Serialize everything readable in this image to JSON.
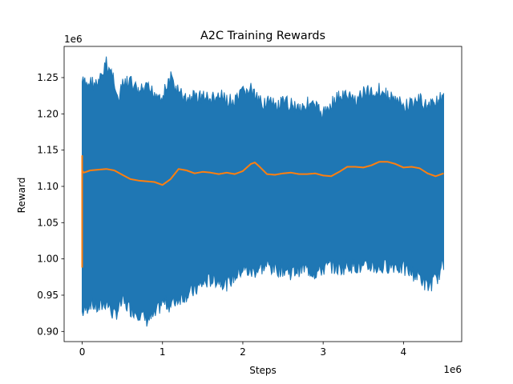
{
  "chart_data": {
    "type": "line",
    "title": "A2C Training Rewards",
    "xlabel": "Steps",
    "ylabel": "Reward",
    "x_offset_label": "1e6",
    "y_offset_label": "1e6",
    "xlim": [
      -0.225,
      4.725
    ],
    "ylim": [
      0.886,
      1.293
    ],
    "x_ticks": [
      0,
      1,
      2,
      3,
      4
    ],
    "y_ticks": [
      0.9,
      0.95,
      1.0,
      1.05,
      1.1,
      1.15,
      1.2,
      1.25
    ],
    "x_tick_labels": [
      "0",
      "1",
      "2",
      "3",
      "4"
    ],
    "y_tick_labels": [
      "0.90",
      "0.95",
      "1.00",
      "1.05",
      "1.10",
      "1.15",
      "1.20",
      "1.25"
    ],
    "grid": false,
    "series": [
      {
        "color": "#1f77b4",
        "style": "noisy-band",
        "x": [
          0.0,
          0.05,
          0.1,
          0.2,
          0.3,
          0.4,
          0.45,
          0.5,
          0.6,
          0.7,
          0.8,
          0.9,
          1.0,
          1.1,
          1.2,
          1.3,
          1.4,
          1.5,
          1.6,
          1.7,
          1.8,
          1.9,
          2.0,
          2.1,
          2.2,
          2.3,
          2.4,
          2.5,
          2.6,
          2.7,
          2.8,
          2.9,
          3.0,
          3.1,
          3.2,
          3.3,
          3.4,
          3.5,
          3.6,
          3.7,
          3.8,
          3.9,
          4.0,
          4.1,
          4.2,
          4.3,
          4.4,
          4.5
        ],
        "upper": [
          1.255,
          1.25,
          1.255,
          1.25,
          1.28,
          1.26,
          1.225,
          1.25,
          1.255,
          1.24,
          1.245,
          1.24,
          1.235,
          1.26,
          1.24,
          1.23,
          1.235,
          1.235,
          1.23,
          1.235,
          1.23,
          1.225,
          1.24,
          1.245,
          1.225,
          1.23,
          1.22,
          1.225,
          1.225,
          1.22,
          1.225,
          1.22,
          1.21,
          1.225,
          1.235,
          1.235,
          1.23,
          1.24,
          1.24,
          1.245,
          1.235,
          1.23,
          1.22,
          1.225,
          1.23,
          1.22,
          1.23,
          1.23
        ],
        "lower": [
          0.915,
          0.92,
          0.93,
          0.92,
          0.93,
          0.91,
          0.92,
          0.93,
          0.92,
          0.915,
          0.905,
          0.91,
          0.93,
          0.925,
          0.935,
          0.94,
          0.945,
          0.955,
          0.96,
          0.96,
          0.955,
          0.965,
          0.975,
          0.97,
          0.975,
          0.98,
          0.975,
          0.975,
          0.97,
          0.975,
          0.975,
          0.97,
          0.975,
          0.98,
          0.975,
          0.98,
          0.98,
          0.975,
          0.98,
          0.975,
          0.98,
          0.98,
          0.975,
          0.97,
          0.965,
          0.95,
          0.96,
          0.98
        ]
      },
      {
        "color": "#ff7f0e",
        "style": "line",
        "x": [
          0.0,
          0.0,
          0.0,
          0.005,
          0.02,
          0.05,
          0.1,
          0.2,
          0.3,
          0.4,
          0.5,
          0.6,
          0.7,
          0.8,
          0.9,
          1.0,
          1.1,
          1.2,
          1.3,
          1.4,
          1.5,
          1.6,
          1.7,
          1.8,
          1.9,
          2.0,
          2.1,
          2.15,
          2.2,
          2.3,
          2.4,
          2.5,
          2.6,
          2.7,
          2.8,
          2.9,
          3.0,
          3.1,
          3.2,
          3.3,
          3.4,
          3.5,
          3.6,
          3.7,
          3.8,
          3.9,
          4.0,
          4.1,
          4.2,
          4.3,
          4.4,
          4.5
        ],
        "y": [
          0.988,
          1.142,
          1.118,
          1.121,
          1.119,
          1.12,
          1.122,
          1.123,
          1.124,
          1.122,
          1.116,
          1.11,
          1.108,
          1.107,
          1.106,
          1.102,
          1.11,
          1.124,
          1.122,
          1.118,
          1.12,
          1.119,
          1.117,
          1.119,
          1.117,
          1.121,
          1.131,
          1.133,
          1.128,
          1.117,
          1.116,
          1.118,
          1.119,
          1.117,
          1.117,
          1.118,
          1.115,
          1.114,
          1.12,
          1.127,
          1.127,
          1.126,
          1.129,
          1.134,
          1.134,
          1.131,
          1.126,
          1.127,
          1.125,
          1.118,
          1.114,
          1.118
        ]
      }
    ]
  }
}
